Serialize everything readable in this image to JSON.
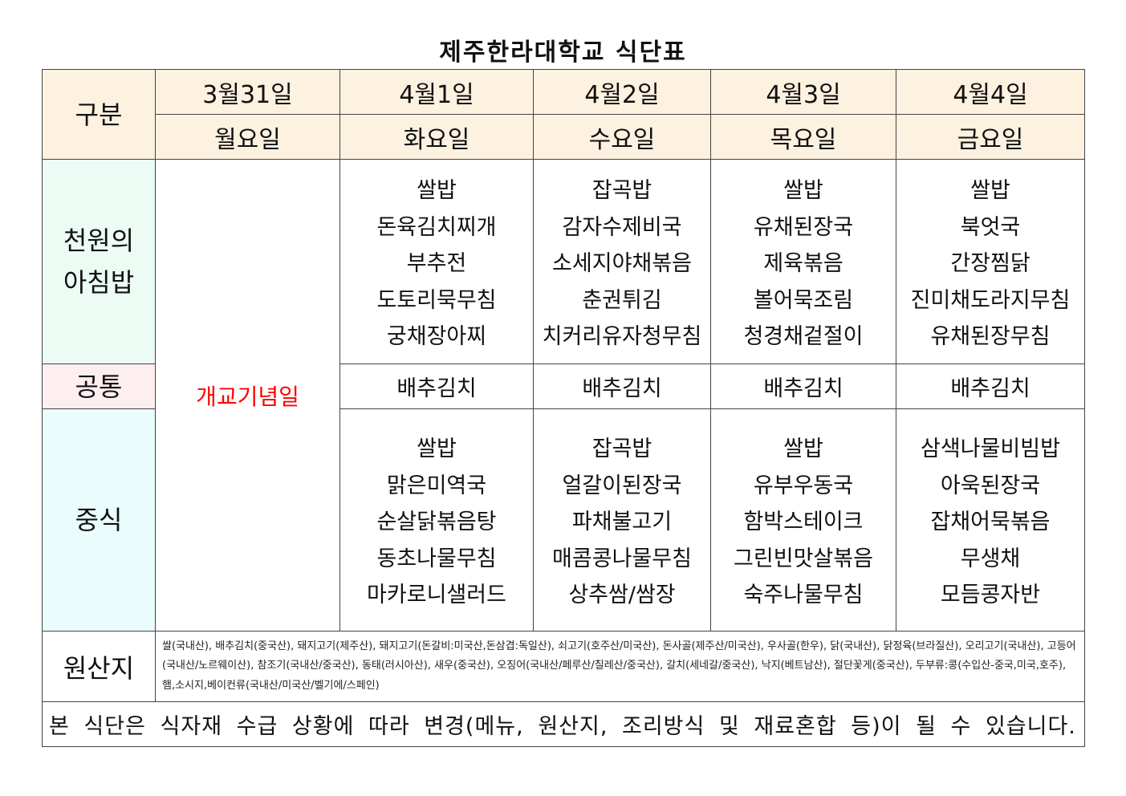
{
  "title": "제주한라대학교 식단표",
  "header": {
    "category_label": "구분",
    "days": [
      {
        "date": "3월31일",
        "weekday": "월요일"
      },
      {
        "date": "4월1일",
        "weekday": "화요일"
      },
      {
        "date": "4월2일",
        "weekday": "수요일"
      },
      {
        "date": "4월3일",
        "weekday": "목요일"
      },
      {
        "date": "4월4일",
        "weekday": "금요일"
      }
    ]
  },
  "holiday": {
    "text": "개교기념일",
    "color": "#ff0000"
  },
  "breakfast": {
    "label_line1": "천원의",
    "label_line2": "아침밥",
    "menus": [
      [
        "쌀밥",
        "돈육김치찌개",
        "부추전",
        "도토리묵무침",
        "궁채장아찌"
      ],
      [
        "잡곡밥",
        "감자수제비국",
        "소세지야채볶음",
        "춘권튀김",
        "치커리유자청무침"
      ],
      [
        "쌀밥",
        "유채된장국",
        "제육볶음",
        "볼어묵조림",
        "청경채겉절이"
      ],
      [
        "쌀밥",
        "북엇국",
        "간장찜닭",
        "진미채도라지무침",
        "유채된장무침"
      ]
    ]
  },
  "common": {
    "label": "공통",
    "items": [
      "배추김치",
      "배추김치",
      "배추김치",
      "배추김치"
    ]
  },
  "lunch": {
    "label": "중식",
    "menus": [
      [
        "쌀밥",
        "맑은미역국",
        "순살닭볶음탕",
        "동초나물무침",
        "마카로니샐러드"
      ],
      [
        "잡곡밥",
        "얼갈이된장국",
        "파채불고기",
        "매콤콩나물무침",
        "상추쌈/쌈장"
      ],
      [
        "쌀밥",
        "유부우동국",
        "함박스테이크",
        "그린빈맛살볶음",
        "숙주나물무침"
      ],
      [
        "삼색나물비빔밥",
        "아욱된장국",
        "잡채어묵볶음",
        "무생채",
        "모듬콩자반"
      ]
    ]
  },
  "origin": {
    "label": "원산지",
    "text": "쌀(국내산), 배추김치(중국산), 돼지고기(제주산), 돼지고기(돈갈비:미국산,돈삼겹:독일산), 쇠고기(호주산/미국산), 돈사골(제주산/미국산), 우사골(한우), 닭(국내산), 닭정육(브라질산), 오리고기(국내산), 고등어(국내산/노르웨이산), 참조기(국내산/중국산), 동태(러시아산), 새우(중국산), 오징어(국내산/페루산/칠레산/중국산), 갈치(세네갈/중국산), 낙지(베트남산), 절단꽃게(중국산), 두부류:콩(수입산-중국,미국,호주), 햄,소시지,베이컨류(국내산/미국산/벨기에/스페인)"
  },
  "notice": "본 식단은 식자재 수급 상황에 따라 변경(메뉴, 원산지, 조리방식 및 재료혼합 등)이 될 수 있습니다."
}
